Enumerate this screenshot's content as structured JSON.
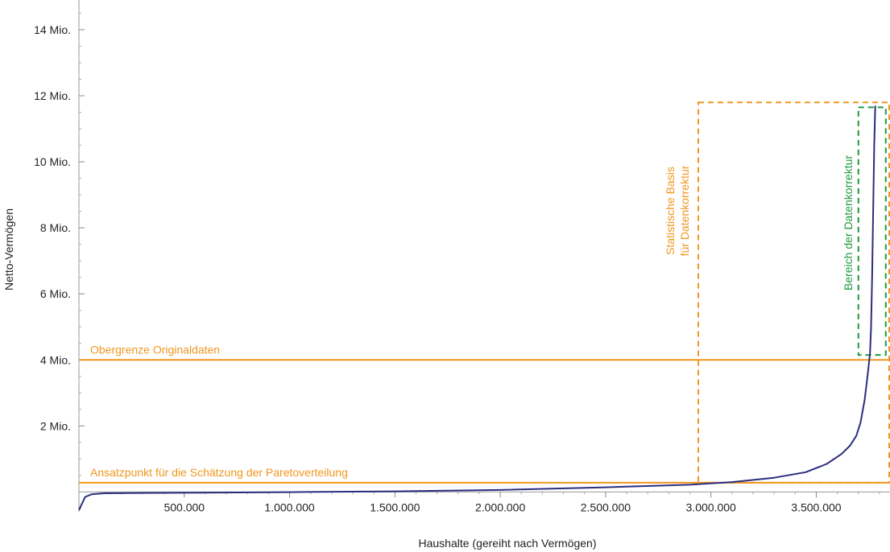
{
  "chart_data": {
    "type": "line",
    "xlabel": "Haushalte (gereiht nach Vermögen)",
    "ylabel": "Netto-Vermögen",
    "xlim": [
      0,
      3850000
    ],
    "ylim": [
      -600000,
      14900000
    ],
    "x_ticks": [
      {
        "value": 500000,
        "label": "500.000"
      },
      {
        "value": 1000000,
        "label": "1.000.000"
      },
      {
        "value": 1500000,
        "label": "1.500.000"
      },
      {
        "value": 2000000,
        "label": "2.000.000"
      },
      {
        "value": 2500000,
        "label": "2.500.000"
      },
      {
        "value": 3000000,
        "label": "3.000.000"
      },
      {
        "value": 3500000,
        "label": "3.500.000"
      }
    ],
    "y_ticks": [
      {
        "value": 2000000,
        "label": "2 Mio."
      },
      {
        "value": 4000000,
        "label": "4 Mio."
      },
      {
        "value": 6000000,
        "label": "6 Mio."
      },
      {
        "value": 8000000,
        "label": "8 Mio."
      },
      {
        "value": 10000000,
        "label": "10 Mio."
      },
      {
        "value": 12000000,
        "label": "12 Mio."
      },
      {
        "value": 14000000,
        "label": "14 Mio."
      }
    ],
    "series": [
      {
        "color": "#2b2d7f",
        "x": [
          0,
          15000,
          30000,
          60000,
          120000,
          300000,
          600000,
          1000000,
          1500000,
          2000000,
          2500000,
          2900000,
          3100000,
          3300000,
          3450000,
          3550000,
          3620000,
          3660000,
          3690000,
          3710000,
          3730000,
          3745000,
          3755000,
          3760000,
          3765000,
          3770000,
          3775000,
          3780000
        ],
        "y": [
          -550000,
          -350000,
          -150000,
          -70000,
          -40000,
          -30000,
          -20000,
          -5000,
          20000,
          60000,
          140000,
          220000,
          300000,
          430000,
          600000,
          850000,
          1150000,
          1400000,
          1700000,
          2100000,
          2800000,
          3600000,
          4200000,
          5000000,
          6500000,
          8500000,
          10500000,
          11700000
        ]
      }
    ],
    "hlines": [
      {
        "y": 4000000,
        "label": "Obergrenze Originaldaten",
        "color": "#f0961e"
      },
      {
        "y": 280000,
        "label": "Ansatzpunkt für die Schätzung der Paretoverteilung",
        "color": "#f0961e"
      }
    ],
    "boxes": [
      {
        "x0": 2940000,
        "x1": 3850000,
        "y0": 280000,
        "y1": 11800000,
        "label_lines": [
          "Statistische Basis",
          "für Datenkorrektur"
        ],
        "color": "#f0961e"
      },
      {
        "x0": 3700000,
        "x1": 3830000,
        "y0": 4150000,
        "y1": 11650000,
        "label_lines": [
          "Bereich der Datenkorrektur"
        ],
        "color": "#1f9a3c"
      }
    ],
    "legend": "none",
    "grid": false
  }
}
